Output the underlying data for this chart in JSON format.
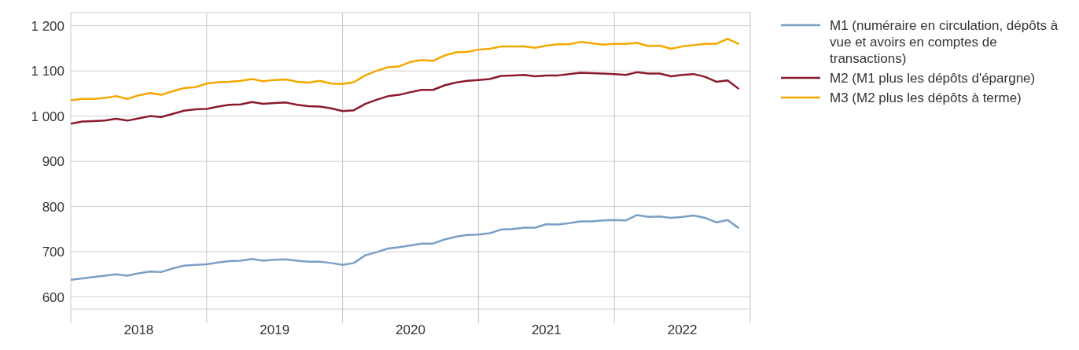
{
  "chart_data": {
    "type": "line",
    "x": [
      "2018-01",
      "2018-02",
      "2018-03",
      "2018-04",
      "2018-05",
      "2018-06",
      "2018-07",
      "2018-08",
      "2018-09",
      "2018-10",
      "2018-11",
      "2018-12",
      "2019-01",
      "2019-02",
      "2019-03",
      "2019-04",
      "2019-05",
      "2019-06",
      "2019-07",
      "2019-08",
      "2019-09",
      "2019-10",
      "2019-11",
      "2019-12",
      "2020-01",
      "2020-02",
      "2020-03",
      "2020-04",
      "2020-05",
      "2020-06",
      "2020-07",
      "2020-08",
      "2020-09",
      "2020-10",
      "2020-11",
      "2020-12",
      "2021-01",
      "2021-02",
      "2021-03",
      "2021-04",
      "2021-05",
      "2021-06",
      "2021-07",
      "2021-08",
      "2021-09",
      "2021-10",
      "2021-11",
      "2021-12",
      "2022-01",
      "2022-02",
      "2022-03",
      "2022-04",
      "2022-05",
      "2022-06",
      "2022-07",
      "2022-08",
      "2022-09",
      "2022-10",
      "2022-11",
      "2022-12"
    ],
    "series": [
      {
        "name": "M1 (numéraire en circulation, dépôts à vue et avoirs en comptes de transactions)",
        "color": "#7a9fc6",
        "values": [
          638,
          641,
          644,
          647,
          650,
          647,
          652,
          656,
          655,
          663,
          669,
          671,
          672,
          676,
          679,
          680,
          684,
          680,
          682,
          683,
          680,
          678,
          678,
          675,
          671,
          675,
          692,
          699,
          707,
          710,
          714,
          718,
          718,
          727,
          733,
          737,
          738,
          741,
          749,
          750,
          753,
          753,
          761,
          760,
          763,
          767,
          767,
          769,
          770,
          769,
          781,
          777,
          778,
          775,
          777,
          780,
          775,
          765,
          770,
          752
        ]
      },
      {
        "name": "M2 (M1 plus les dépôts d'épargne)",
        "color": "#8b1a2b",
        "values": [
          983,
          988,
          989,
          990,
          994,
          990,
          995,
          1000,
          998,
          1005,
          1012,
          1015,
          1016,
          1021,
          1025,
          1026,
          1031,
          1027,
          1029,
          1030,
          1025,
          1022,
          1021,
          1017,
          1011,
          1013,
          1027,
          1036,
          1044,
          1047,
          1053,
          1058,
          1058,
          1068,
          1074,
          1078,
          1080,
          1082,
          1089,
          1090,
          1091,
          1088,
          1090,
          1090,
          1093,
          1096,
          1095,
          1094,
          1093,
          1091,
          1097,
          1094,
          1094,
          1088,
          1091,
          1093,
          1087,
          1076,
          1079,
          1060
        ]
      },
      {
        "name": "M3 (M2 plus les dépôts à terme)",
        "color": "#f5a800",
        "values": [
          1035,
          1038,
          1038,
          1040,
          1044,
          1038,
          1046,
          1051,
          1047,
          1055,
          1062,
          1064,
          1072,
          1075,
          1076,
          1078,
          1082,
          1077,
          1080,
          1081,
          1076,
          1074,
          1078,
          1072,
          1071,
          1075,
          1090,
          1100,
          1108,
          1110,
          1120,
          1124,
          1122,
          1134,
          1141,
          1142,
          1147,
          1149,
          1154,
          1154,
          1154,
          1151,
          1156,
          1159,
          1159,
          1164,
          1161,
          1158,
          1160,
          1160,
          1162,
          1155,
          1156,
          1149,
          1154,
          1157,
          1160,
          1160,
          1171,
          1159
        ]
      }
    ],
    "xlim": [
      "2018-01",
      "2023-01"
    ],
    "xticks": [
      {
        "value": "2018-01",
        "label": null
      },
      {
        "value": "2018-07",
        "label": "2018"
      },
      {
        "value": "2019-01",
        "label": null
      },
      {
        "value": "2019-07",
        "label": "2019"
      },
      {
        "value": "2020-01",
        "label": null
      },
      {
        "value": "2020-07",
        "label": "2020"
      },
      {
        "value": "2021-01",
        "label": null
      },
      {
        "value": "2021-07",
        "label": "2021"
      },
      {
        "value": "2022-01",
        "label": null
      },
      {
        "value": "2022-07",
        "label": "2022"
      },
      {
        "value": "2023-01",
        "label": null
      }
    ],
    "ylim": [
      573,
      1229
    ],
    "yticks": [
      600,
      700,
      800,
      900,
      {
        "value": 1000,
        "label": "1 000"
      },
      {
        "value": 1100,
        "label": "1 100"
      },
      {
        "value": 1200,
        "label": "1 200"
      }
    ],
    "grid": true,
    "legend": "right",
    "marker": "none",
    "line_style": "solid"
  }
}
